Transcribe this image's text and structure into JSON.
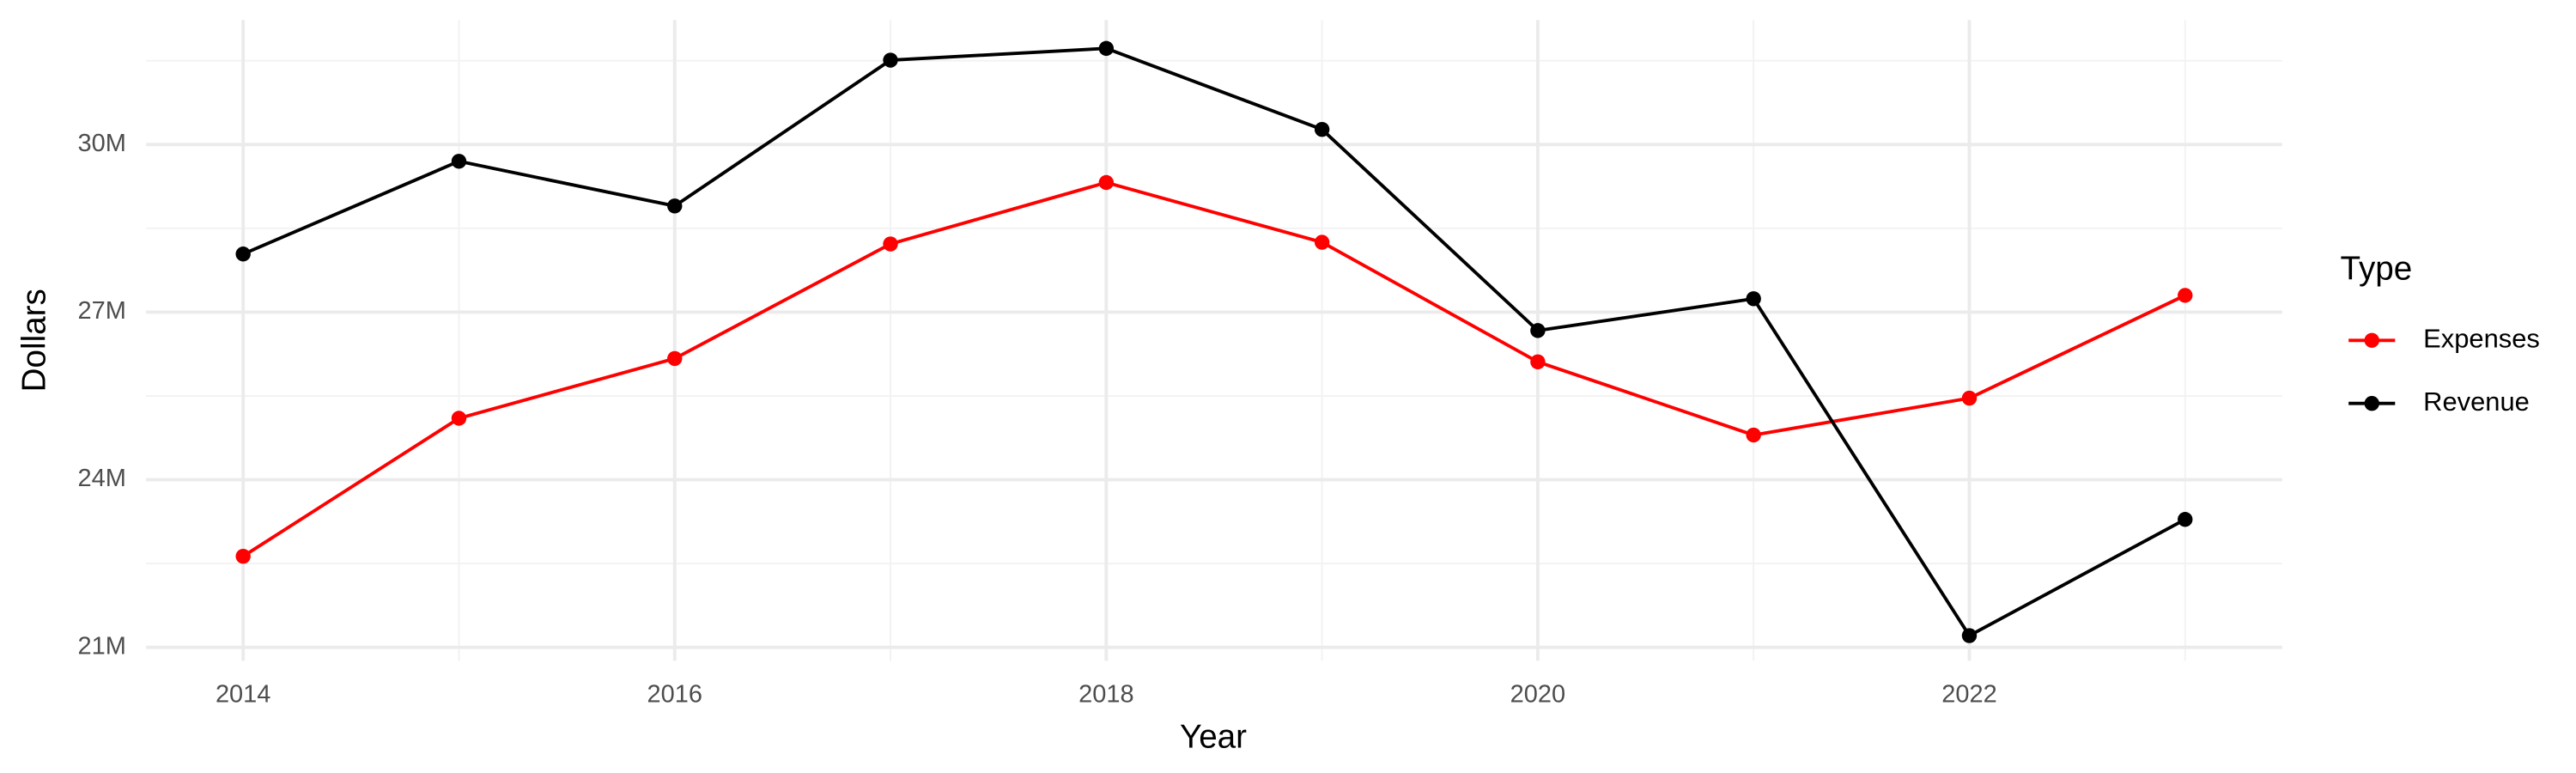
{
  "chart_data": {
    "type": "line",
    "x_label": "Year",
    "y_label": "Dollars",
    "legend_title": "Type",
    "legend_position": "right",
    "grid": true,
    "x": [
      2014,
      2015,
      2016,
      2017,
      2018,
      2019,
      2020,
      2021,
      2022,
      2023
    ],
    "series": [
      {
        "name": "Expenses",
        "color": "#ff0000",
        "values": [
          22630000,
          25100000,
          26170000,
          28220000,
          29320000,
          28250000,
          26110000,
          24800000,
          25460000,
          27300000
        ]
      },
      {
        "name": "Revenue",
        "color": "#000000",
        "values": [
          28040000,
          29700000,
          28900000,
          31510000,
          31720000,
          30270000,
          26670000,
          27240000,
          21210000,
          23290000
        ]
      }
    ],
    "xlim": [
      2013.55,
      2023.45
    ],
    "xticks": [
      2014,
      2016,
      2018,
      2020,
      2022
    ],
    "x_minor_ticks": [
      2015,
      2017,
      2019,
      2021,
      2023
    ],
    "ylim": [
      20760000,
      32230000
    ],
    "yticks": [
      {
        "value": 21000000,
        "label": "21M"
      },
      {
        "value": 24000000,
        "label": "24M"
      },
      {
        "value": 27000000,
        "label": "27M"
      },
      {
        "value": 30000000,
        "label": "30M"
      }
    ],
    "y_minor_ticks": [
      22500000,
      25500000,
      28500000,
      31500000
    ]
  }
}
